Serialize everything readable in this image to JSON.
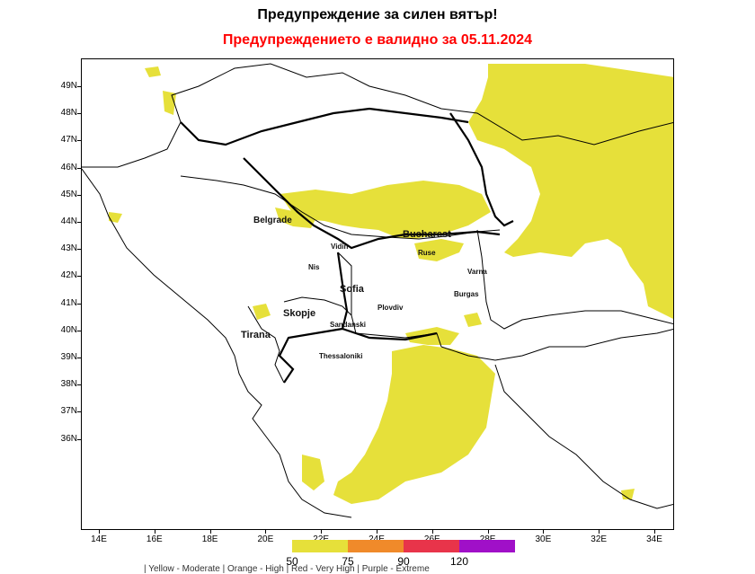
{
  "header": {
    "title": "Предупреждение за силен вятър!",
    "subtitle": "Предупреждението е валидно за 05.11.2024",
    "subtitle_color": "#ff0000"
  },
  "map": {
    "latitudes": [
      "49N",
      "48N",
      "47N",
      "46N",
      "45N",
      "44N",
      "43N",
      "42N",
      "41N",
      "40N",
      "39N",
      "38N",
      "37N",
      "36N"
    ],
    "longitudes": [
      "14E",
      "16E",
      "18E",
      "20E",
      "22E",
      "24E",
      "26E",
      "28E",
      "30E",
      "32E",
      "34E"
    ],
    "fill_color": "#e6e03a",
    "cities": {
      "belgrade": "Belgrade",
      "bucharest": "Bucharest",
      "vidin": "Vidin",
      "ruse": "Ruse",
      "varna": "Varna",
      "nis": "Nis",
      "sofia": "Sofia",
      "burgas": "Burgas",
      "plovdiv": "Plovdiv",
      "skopje": "Skopje",
      "sandanski": "Sandanski",
      "tirana": "Tirana",
      "thessaloniki": "Thessaloniki"
    }
  },
  "legend": {
    "values": [
      "50",
      "75",
      "90",
      "120"
    ],
    "colors": [
      "#e6e03a",
      "#f08a2a",
      "#e8344a",
      "#a010c8"
    ],
    "text": "| Yellow - Moderate | Orange - High | Red - Very High | Purple - Extreme"
  }
}
